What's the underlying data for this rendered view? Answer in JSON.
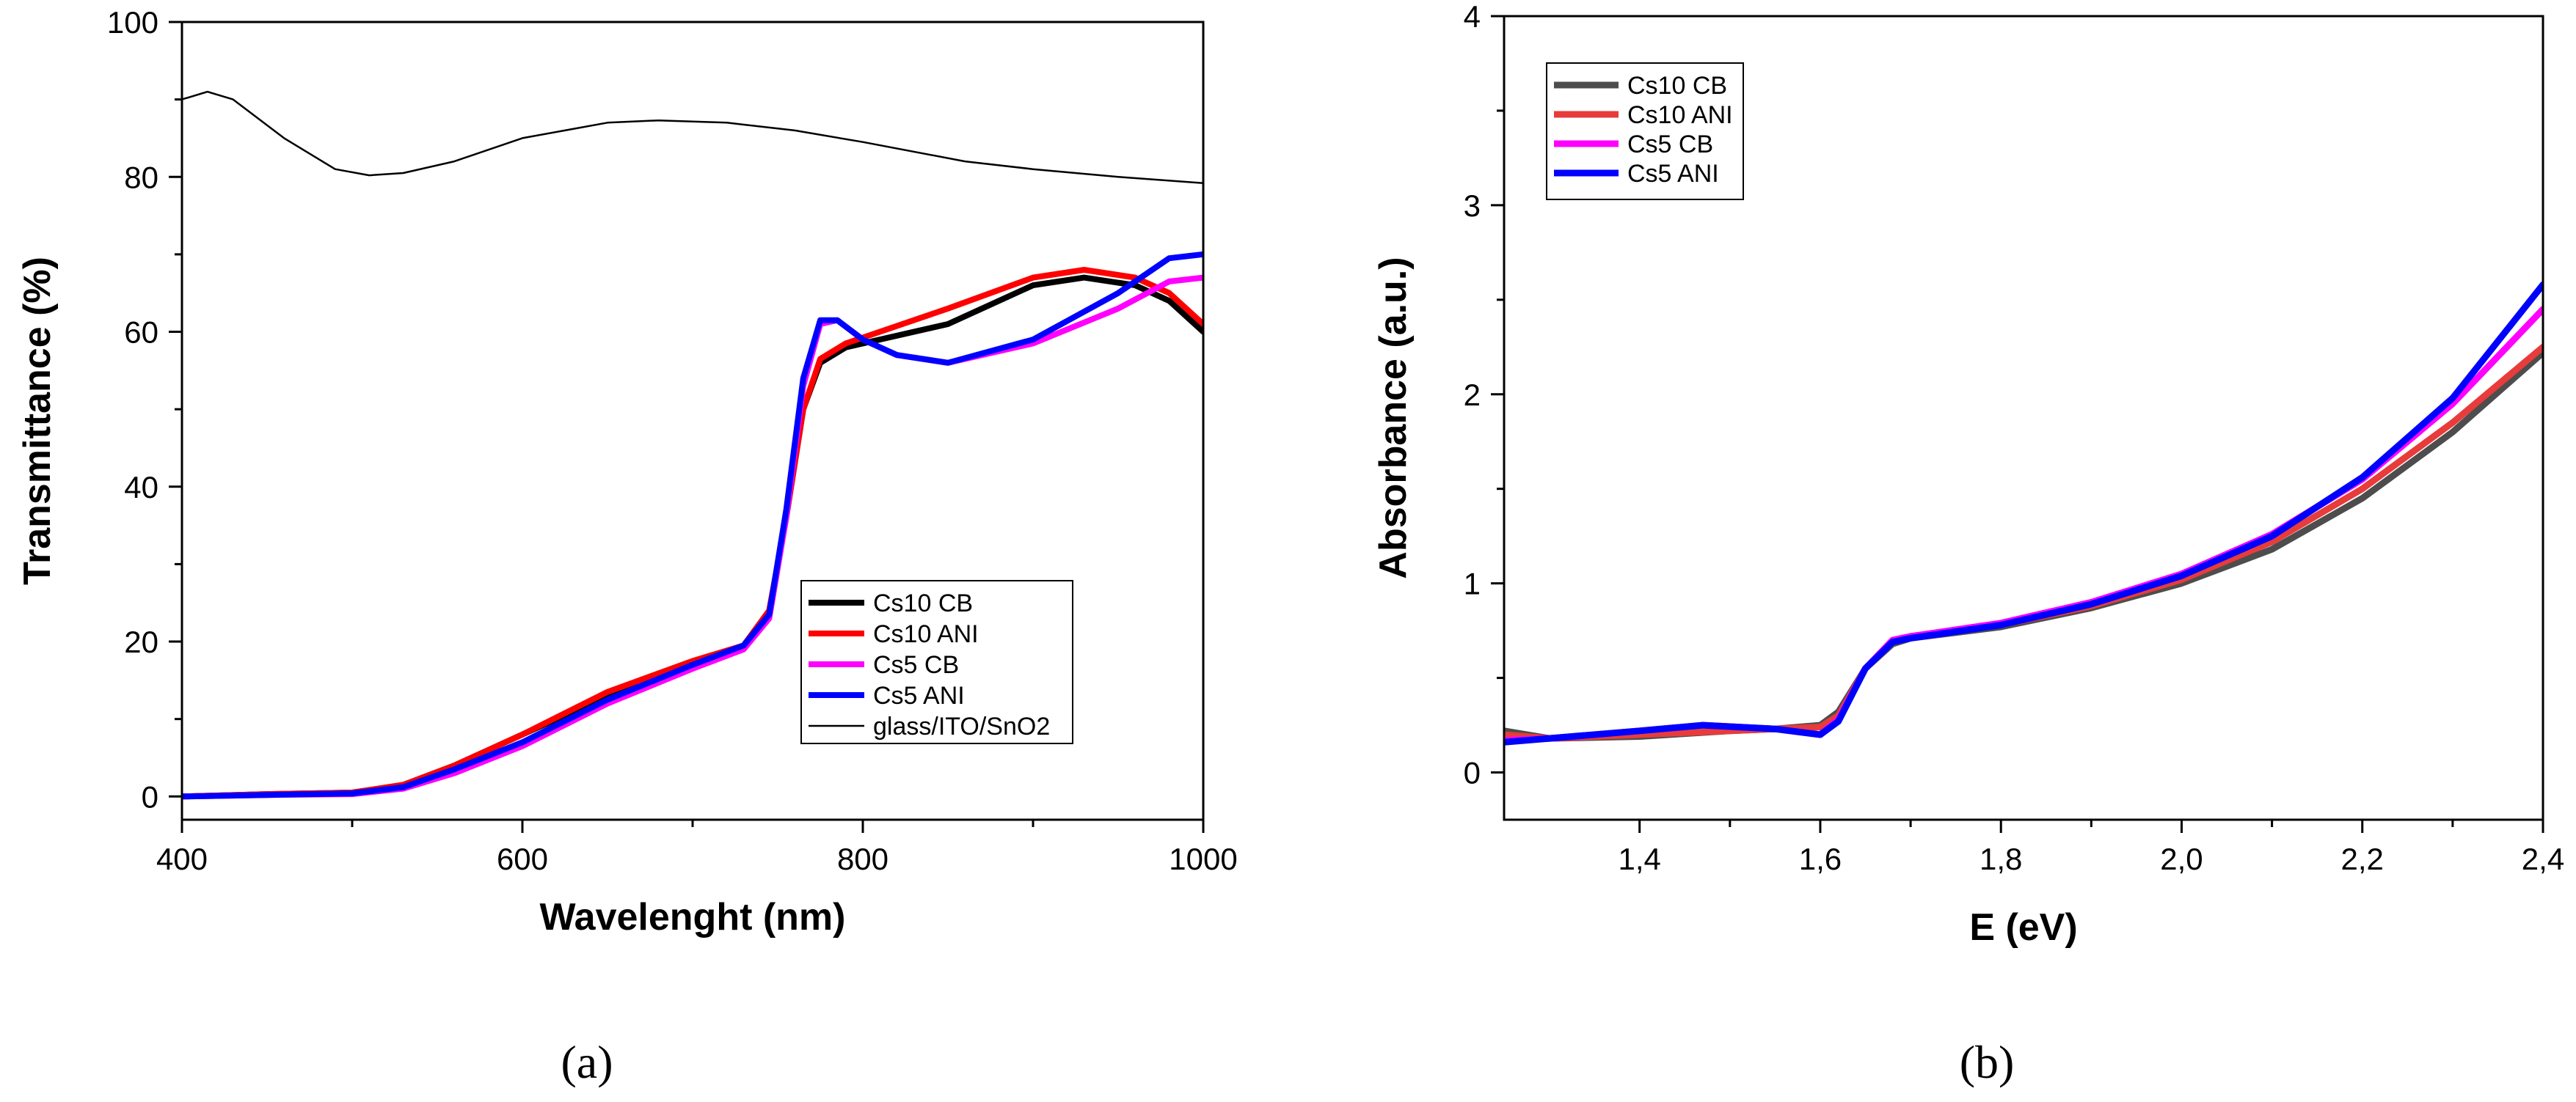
{
  "chart_data": [
    {
      "type": "line",
      "panel_label": "(a)",
      "xlabel": "Wavelenght (nm)",
      "ylabel": "Transmittance (%)",
      "xlim": [
        400,
        1000
      ],
      "ylim": [
        -3,
        100
      ],
      "xticks": [
        "400",
        "600",
        "800",
        "1000"
      ],
      "yticks": [
        "0",
        "20",
        "40",
        "60",
        "80",
        "100"
      ],
      "legend_position": "lower-right",
      "series": [
        {
          "name": "Cs10 CB",
          "color": "#000000",
          "x": [
            400,
            450,
            500,
            530,
            560,
            600,
            650,
            700,
            730,
            745,
            755,
            765,
            775,
            790,
            810,
            850,
            900,
            930,
            960,
            980,
            1000
          ],
          "y": [
            0,
            0.3,
            0.5,
            1.5,
            4,
            8,
            13,
            17,
            19.5,
            24,
            36,
            50,
            56,
            58,
            59,
            61,
            66,
            67,
            66,
            64,
            60
          ]
        },
        {
          "name": "Cs10 ANI",
          "color": "#ff0000",
          "x": [
            400,
            450,
            500,
            530,
            560,
            600,
            650,
            700,
            730,
            745,
            755,
            765,
            775,
            790,
            810,
            850,
            900,
            930,
            960,
            980,
            1000
          ],
          "y": [
            0,
            0.3,
            0.5,
            1.5,
            4,
            8,
            13.5,
            17.5,
            19.5,
            24,
            36,
            50,
            56.5,
            58.5,
            60,
            63,
            67,
            68,
            67,
            65,
            61
          ]
        },
        {
          "name": "Cs5 CB",
          "color": "#ff00ff",
          "x": [
            400,
            450,
            500,
            530,
            560,
            600,
            650,
            700,
            730,
            745,
            755,
            765,
            775,
            785,
            800,
            820,
            850,
            900,
            950,
            980,
            1000
          ],
          "y": [
            0,
            0.2,
            0.3,
            1,
            3,
            6.5,
            12,
            16.5,
            19,
            23,
            36,
            53,
            61,
            61.5,
            59,
            57,
            56,
            58.5,
            63,
            66.5,
            67
          ]
        },
        {
          "name": "Cs5 ANI",
          "color": "#0000ff",
          "x": [
            400,
            450,
            500,
            530,
            560,
            600,
            650,
            700,
            730,
            745,
            755,
            765,
            775,
            785,
            800,
            820,
            850,
            900,
            950,
            980,
            1000
          ],
          "y": [
            0,
            0.2,
            0.4,
            1.2,
            3.5,
            7,
            12.5,
            17,
            19.5,
            23.5,
            37,
            54,
            61.5,
            61.5,
            59,
            57,
            56,
            59,
            65,
            69.5,
            70
          ]
        },
        {
          "name": "glass/ITO/SnO2",
          "color": "#000000",
          "x": [
            400,
            415,
            430,
            460,
            490,
            510,
            530,
            560,
            600,
            650,
            680,
            720,
            760,
            800,
            860,
            900,
            950,
            1000
          ],
          "y": [
            90,
            91,
            90,
            85,
            81,
            80.2,
            80.5,
            82,
            85,
            87,
            87.3,
            87,
            86,
            84.5,
            82,
            81,
            80,
            79.2
          ]
        }
      ]
    },
    {
      "type": "line",
      "panel_label": "(b)",
      "xlabel": "E (eV)",
      "ylabel": "Absorbance (a.u.)",
      "xlim": [
        1.25,
        2.4
      ],
      "ylim": [
        -0.25,
        4
      ],
      "xticks": [
        "1,4",
        "1,6",
        "1,8",
        "2,0",
        "2,2",
        "2,4"
      ],
      "yticks": [
        "0",
        "1",
        "2",
        "3",
        "4"
      ],
      "legend_position": "top-left",
      "series": [
        {
          "name": "Cs10 CB",
          "color": "#4d4d4d",
          "x": [
            1.25,
            1.3,
            1.4,
            1.5,
            1.55,
            1.6,
            1.62,
            1.65,
            1.68,
            1.7,
            1.8,
            1.9,
            2.0,
            2.1,
            2.2,
            2.3,
            2.4
          ],
          "y": [
            0.22,
            0.18,
            0.19,
            0.22,
            0.23,
            0.25,
            0.32,
            0.55,
            0.68,
            0.71,
            0.77,
            0.87,
            1.0,
            1.18,
            1.45,
            1.8,
            2.22
          ]
        },
        {
          "name": "Cs10 ANI",
          "color": "#e83b3b",
          "x": [
            1.25,
            1.3,
            1.4,
            1.5,
            1.55,
            1.6,
            1.62,
            1.65,
            1.68,
            1.7,
            1.8,
            1.9,
            2.0,
            2.1,
            2.2,
            2.3,
            2.4
          ],
          "y": [
            0.2,
            0.18,
            0.2,
            0.22,
            0.23,
            0.24,
            0.3,
            0.55,
            0.69,
            0.72,
            0.78,
            0.88,
            1.02,
            1.22,
            1.5,
            1.85,
            2.25
          ]
        },
        {
          "name": "Cs5 CB",
          "color": "#ff00ff",
          "x": [
            1.25,
            1.3,
            1.4,
            1.47,
            1.55,
            1.6,
            1.62,
            1.65,
            1.68,
            1.7,
            1.8,
            1.9,
            2.0,
            2.1,
            2.2,
            2.3,
            2.4
          ],
          "y": [
            0.17,
            0.18,
            0.22,
            0.25,
            0.23,
            0.2,
            0.28,
            0.55,
            0.7,
            0.72,
            0.79,
            0.9,
            1.05,
            1.26,
            1.55,
            1.95,
            2.45
          ]
        },
        {
          "name": "Cs5 ANI",
          "color": "#0000ff",
          "x": [
            1.25,
            1.3,
            1.4,
            1.47,
            1.55,
            1.6,
            1.62,
            1.65,
            1.68,
            1.7,
            1.8,
            1.9,
            2.0,
            2.1,
            2.2,
            2.3,
            2.4
          ],
          "y": [
            0.16,
            0.18,
            0.22,
            0.25,
            0.23,
            0.2,
            0.27,
            0.55,
            0.69,
            0.71,
            0.78,
            0.89,
            1.04,
            1.25,
            1.56,
            1.98,
            2.58
          ]
        }
      ]
    }
  ]
}
